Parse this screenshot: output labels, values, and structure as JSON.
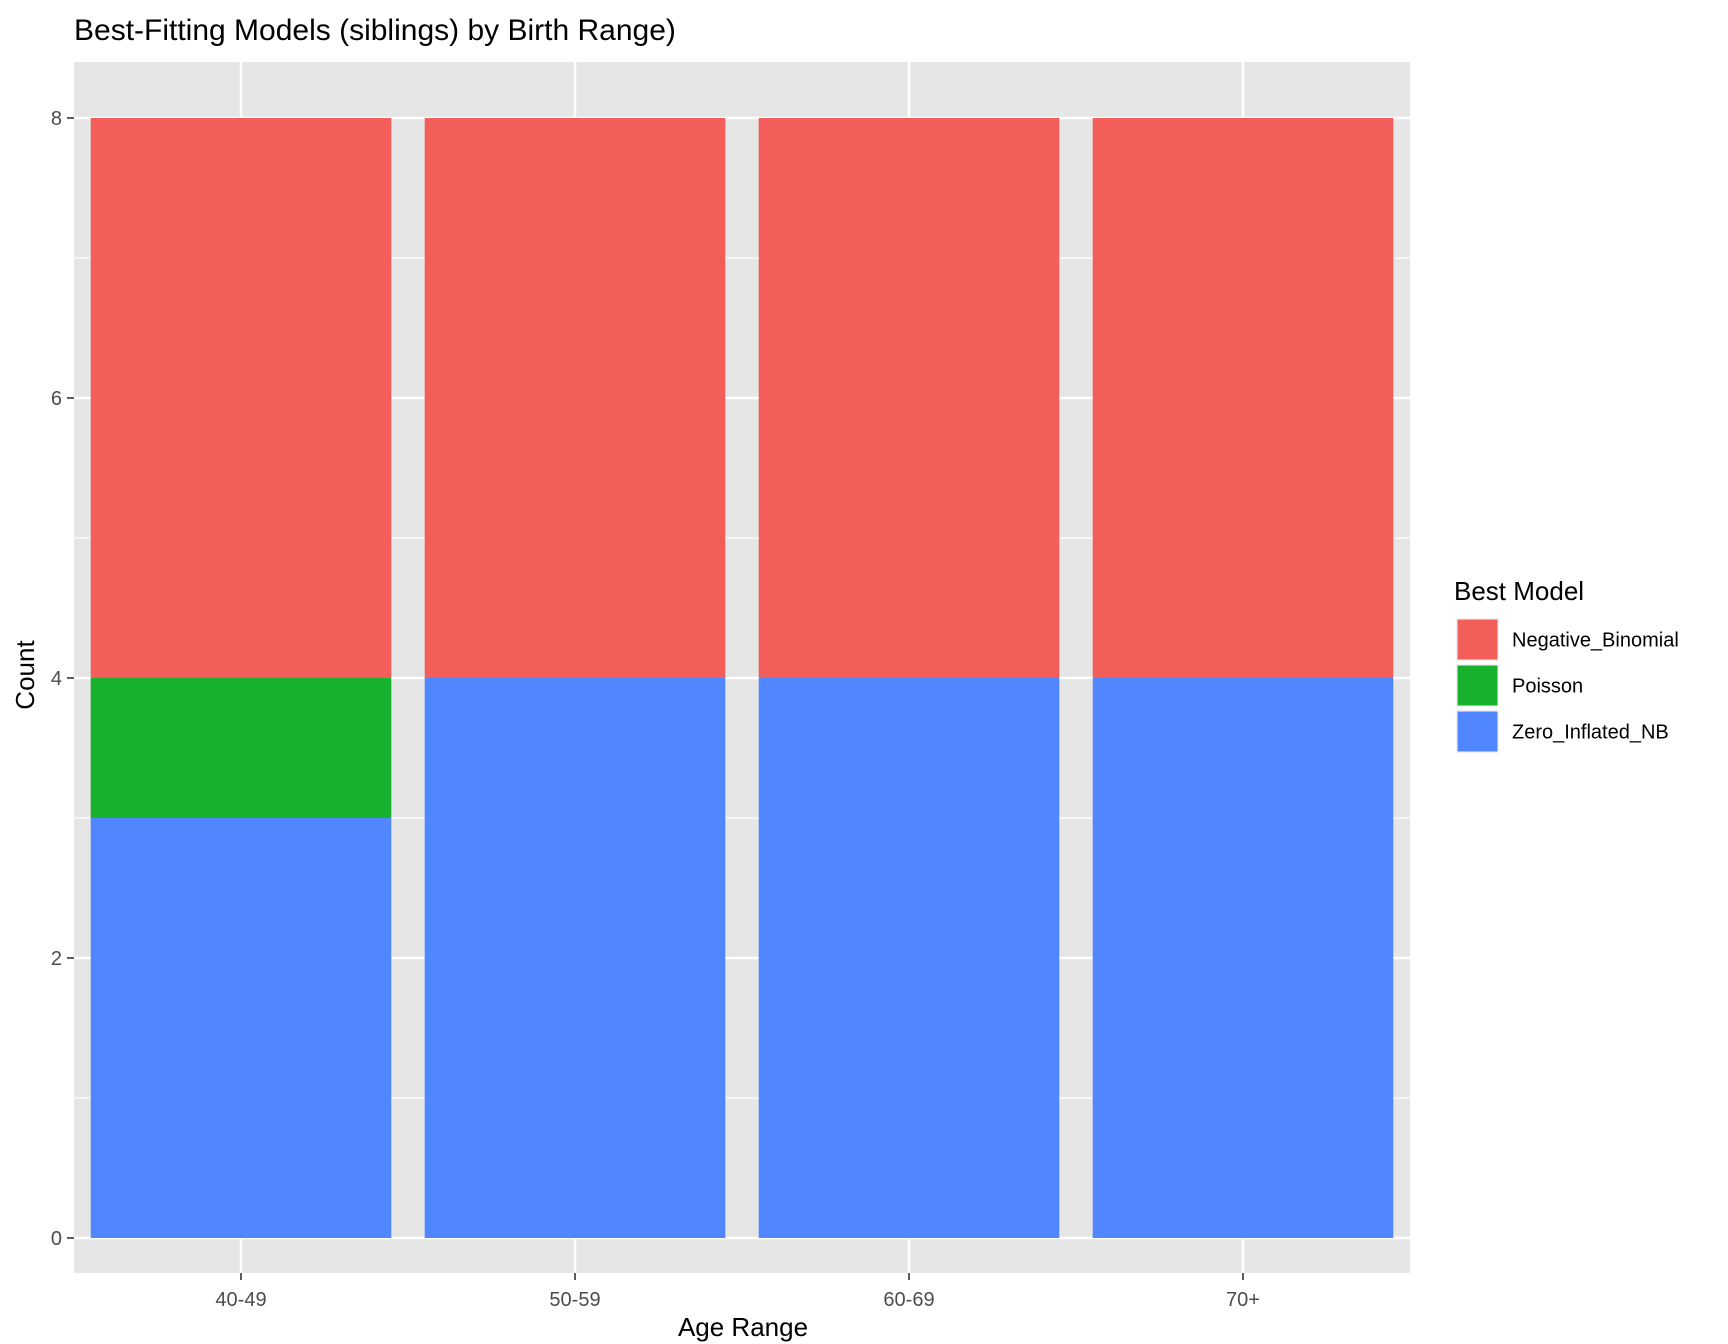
{
  "chart_data": {
    "type": "bar",
    "stacked": true,
    "title": "Best-Fitting Models (siblings) by Birth Range)",
    "xlabel": "Age Range",
    "ylabel": "Count",
    "categories": [
      "40-49",
      "50-59",
      "60-69",
      "70+"
    ],
    "ylim": [
      -0.25,
      8.4
    ],
    "y_ticks": [
      0,
      2,
      4,
      6,
      8
    ],
    "y_tick_labels": [
      "0",
      "2",
      "4",
      "6",
      "8"
    ],
    "grid": true,
    "legend": {
      "title": "Best Model",
      "placement": "right"
    },
    "series": [
      {
        "name": "Negative_Binomial",
        "color": "#F35E5A",
        "values": [
          4,
          4,
          4,
          4
        ]
      },
      {
        "name": "Poisson",
        "color": "#18B12E",
        "values": [
          1,
          0,
          0,
          0
        ]
      },
      {
        "name": "Zero_Inflated_NB",
        "color": "#5086FF",
        "values": [
          3,
          4,
          4,
          4
        ]
      }
    ],
    "panel_background": "#E6E6E6",
    "gridline_color": "#FFFFFF"
  }
}
